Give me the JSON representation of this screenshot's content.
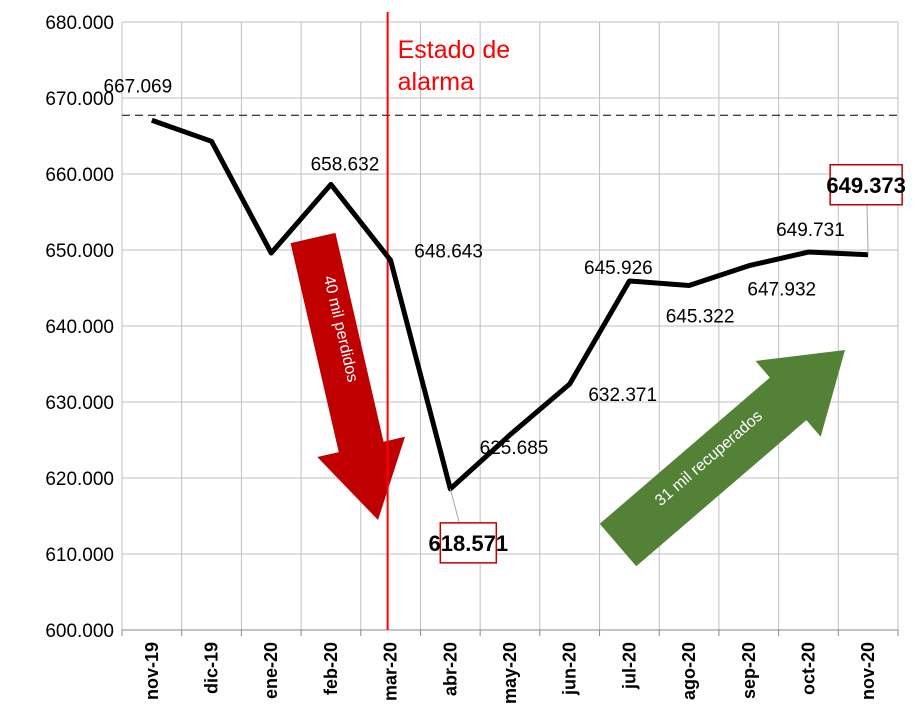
{
  "chart_data": {
    "type": "line",
    "categories": [
      "nov-19",
      "dic-19",
      "ene-20",
      "feb-20",
      "mar-20",
      "abr-20",
      "may-20",
      "jun-20",
      "jul-20",
      "ago-20",
      "sep-20",
      "oct-20",
      "nov-20"
    ],
    "values": [
      667069,
      664300,
      649600,
      658632,
      648643,
      618571,
      625685,
      632371,
      645926,
      645322,
      647932,
      649731,
      649373
    ],
    "value_labels": [
      "667.069",
      null,
      null,
      "658.632",
      "648.643",
      "618.571",
      "625.685",
      "632.371",
      "645.926",
      "645.322",
      "647.932",
      "649.731",
      "649.373"
    ],
    "color": "#000000",
    "ylim": [
      600000,
      680000
    ],
    "yticks": [
      {
        "value": 600000,
        "label": "600.000"
      },
      {
        "value": 610000,
        "label": "610.000"
      },
      {
        "value": 620000,
        "label": "620.000"
      },
      {
        "value": 630000,
        "label": "630.000"
      },
      {
        "value": 640000,
        "label": "640.000"
      },
      {
        "value": 650000,
        "label": "650.000"
      },
      {
        "value": 660000,
        "label": "660.000"
      },
      {
        "value": 670000,
        "label": "670.000"
      },
      {
        "value": 680000,
        "label": "680.000"
      }
    ],
    "grid": true,
    "event_line": {
      "category": "mar-20",
      "label": [
        "Estado de",
        "alarma"
      ],
      "color": "#ff0000"
    },
    "annotations": [
      {
        "text": "40 mil perdidos",
        "color": "#c00000"
      },
      {
        "text": "31 mil recuperados",
        "color": "#538135"
      }
    ]
  }
}
